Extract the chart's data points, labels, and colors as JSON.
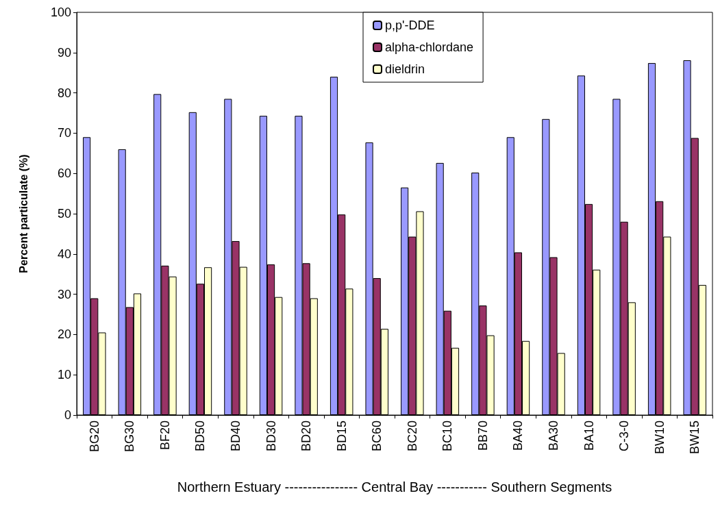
{
  "chart_data": {
    "type": "bar",
    "ylabel": "Percent particulate (%)",
    "xlabel": "Northern Estuary ---------------- Central Bay ----------- Southern Segments",
    "categories": [
      "BG20",
      "BG30",
      "BF20",
      "BD50",
      "BD40",
      "BD30",
      "BD20",
      "BD15",
      "BC60",
      "BC20",
      "BC10",
      "BB70",
      "BA40",
      "BA30",
      "BA10",
      "C-3-0",
      "BW10",
      "BW15"
    ],
    "series": [
      {
        "name": "p,p'-DDE",
        "color": "#9999ff",
        "values": [
          69,
          66,
          79.7,
          75.2,
          78.5,
          74.3,
          74.3,
          84,
          67.7,
          56.5,
          62.6,
          60.2,
          69,
          73.5,
          84.3,
          78.5,
          87.4,
          88.1
        ]
      },
      {
        "name": "alpha-chlordane",
        "color": "#993366",
        "values": [
          29,
          26.8,
          37.1,
          32.6,
          43.2,
          37.4,
          37.7,
          49.8,
          34,
          44.3,
          25.9,
          27.2,
          40.4,
          39.2,
          52.4,
          48,
          53.1,
          68.8
        ]
      },
      {
        "name": "dieldrin",
        "color": "#ffffcc",
        "values": [
          20.5,
          30.2,
          34.4,
          36.7,
          36.8,
          29.3,
          29,
          31.4,
          21.4,
          50.6,
          16.7,
          19.8,
          18.4,
          15.4,
          36.1,
          28,
          44.3,
          32.3
        ]
      }
    ],
    "ylim": [
      0,
      100
    ],
    "yticks": [
      0,
      10,
      20,
      30,
      40,
      50,
      60,
      70,
      80,
      90,
      100
    ],
    "grid": false,
    "legend": "top"
  }
}
